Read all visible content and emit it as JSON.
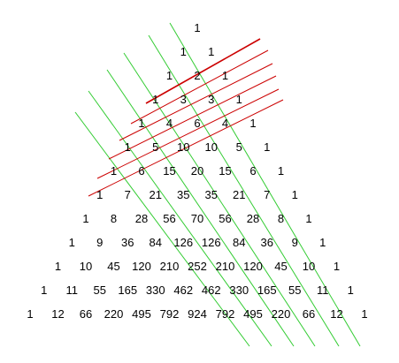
{
  "diagram": {
    "rows": [
      [
        "1"
      ],
      [
        "1",
        "1"
      ],
      [
        "1",
        "2",
        "1"
      ],
      [
        "1",
        "3",
        "3",
        "1"
      ],
      [
        "1",
        "4",
        "6",
        "4",
        "1"
      ],
      [
        "1",
        "5",
        "10",
        "10",
        "5",
        "1"
      ],
      [
        "1",
        "6",
        "15",
        "20",
        "15",
        "6",
        "1"
      ],
      [
        "1",
        "7",
        "21",
        "35",
        "35",
        "21",
        "7",
        "1"
      ],
      [
        "1",
        "8",
        "28",
        "56",
        "70",
        "56",
        "28",
        "8",
        "1"
      ],
      [
        "1",
        "9",
        "36",
        "84",
        "126",
        "126",
        "84",
        "36",
        "9",
        "1"
      ],
      [
        "1",
        "10",
        "45",
        "120",
        "210",
        "252",
        "210",
        "120",
        "45",
        "10",
        "1"
      ],
      [
        "1",
        "11",
        "55",
        "165",
        "330",
        "462",
        "462",
        "330",
        "165",
        "55",
        "11",
        "1"
      ],
      [
        "1",
        "12",
        "66",
        "220",
        "495",
        "792",
        "924",
        "792",
        "495",
        "220",
        "66",
        "12",
        "1"
      ]
    ],
    "colors": {
      "red_line": "#cc0000",
      "green_line": "#33cc33",
      "text": "#000000"
    }
  }
}
